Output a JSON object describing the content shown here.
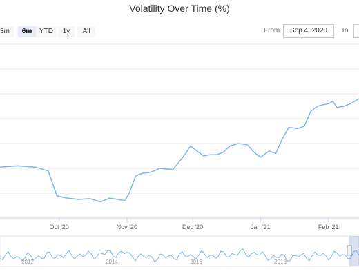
{
  "title": "Volatility Over Time (%)",
  "range_selector": {
    "buttons": [
      "3m",
      "6m",
      "YTD",
      "1y",
      "All"
    ],
    "active": "6m",
    "from_label": "From",
    "from_value": "Sep 4, 2020",
    "to_label": "To"
  },
  "colors": {
    "series": "#7cb5ec",
    "grid": "#e6e6e6",
    "navigator": "#7cb5ec"
  },
  "chart_data": {
    "type": "line",
    "title": "Volatility Over Time (%)",
    "x_ticks": [
      "Oct '20",
      "Nov '20",
      "Dec '20",
      "Jan '21",
      "Feb '21"
    ],
    "x_tick_dates": [
      "2020-10-01",
      "2020-11-01",
      "2020-12-01",
      "2021-01-01",
      "2021-02-01"
    ],
    "xlim": [
      "2020-09-04",
      "2021-02-15"
    ],
    "ylim": [
      0,
      7
    ],
    "grid": true,
    "series": [
      {
        "x": [
          "2020-09-04",
          "2020-09-12",
          "2020-09-20",
          "2020-09-26",
          "2020-09-30",
          "2020-10-02",
          "2020-10-05",
          "2020-10-10",
          "2020-10-15",
          "2020-10-20",
          "2020-10-24",
          "2020-10-28",
          "2020-10-31",
          "2020-11-02",
          "2020-11-05",
          "2020-11-08",
          "2020-11-10",
          "2020-11-12",
          "2020-11-16",
          "2020-11-22",
          "2020-11-27",
          "2020-11-30",
          "2020-12-03",
          "2020-12-06",
          "2020-12-09",
          "2020-12-12",
          "2020-12-15",
          "2020-12-18",
          "2020-12-22",
          "2020-12-26",
          "2020-12-29",
          "2021-01-01",
          "2021-01-05",
          "2021-01-08",
          "2021-01-11",
          "2021-01-14",
          "2021-01-18",
          "2021-01-21",
          "2021-01-24",
          "2021-01-27",
          "2021-01-29",
          "2021-02-01",
          "2021-02-03",
          "2021-02-05",
          "2021-02-08",
          "2021-02-11",
          "2021-02-15"
        ],
        "y": [
          2.05,
          2.1,
          2.05,
          1.9,
          0.9,
          0.85,
          0.8,
          0.75,
          0.78,
          0.65,
          0.8,
          0.75,
          0.7,
          1.0,
          1.7,
          1.8,
          1.82,
          1.85,
          2.0,
          1.95,
          2.5,
          2.9,
          2.7,
          2.5,
          2.55,
          2.55,
          2.65,
          2.9,
          3.0,
          2.95,
          2.65,
          2.45,
          2.7,
          2.6,
          3.2,
          3.65,
          3.6,
          3.7,
          4.3,
          4.5,
          4.55,
          4.6,
          4.7,
          4.45,
          4.5,
          4.6,
          4.8
        ]
      }
    ]
  },
  "navigator": {
    "ticks": [
      "2012",
      "2014",
      "2016",
      "2018",
      "2020"
    ]
  }
}
